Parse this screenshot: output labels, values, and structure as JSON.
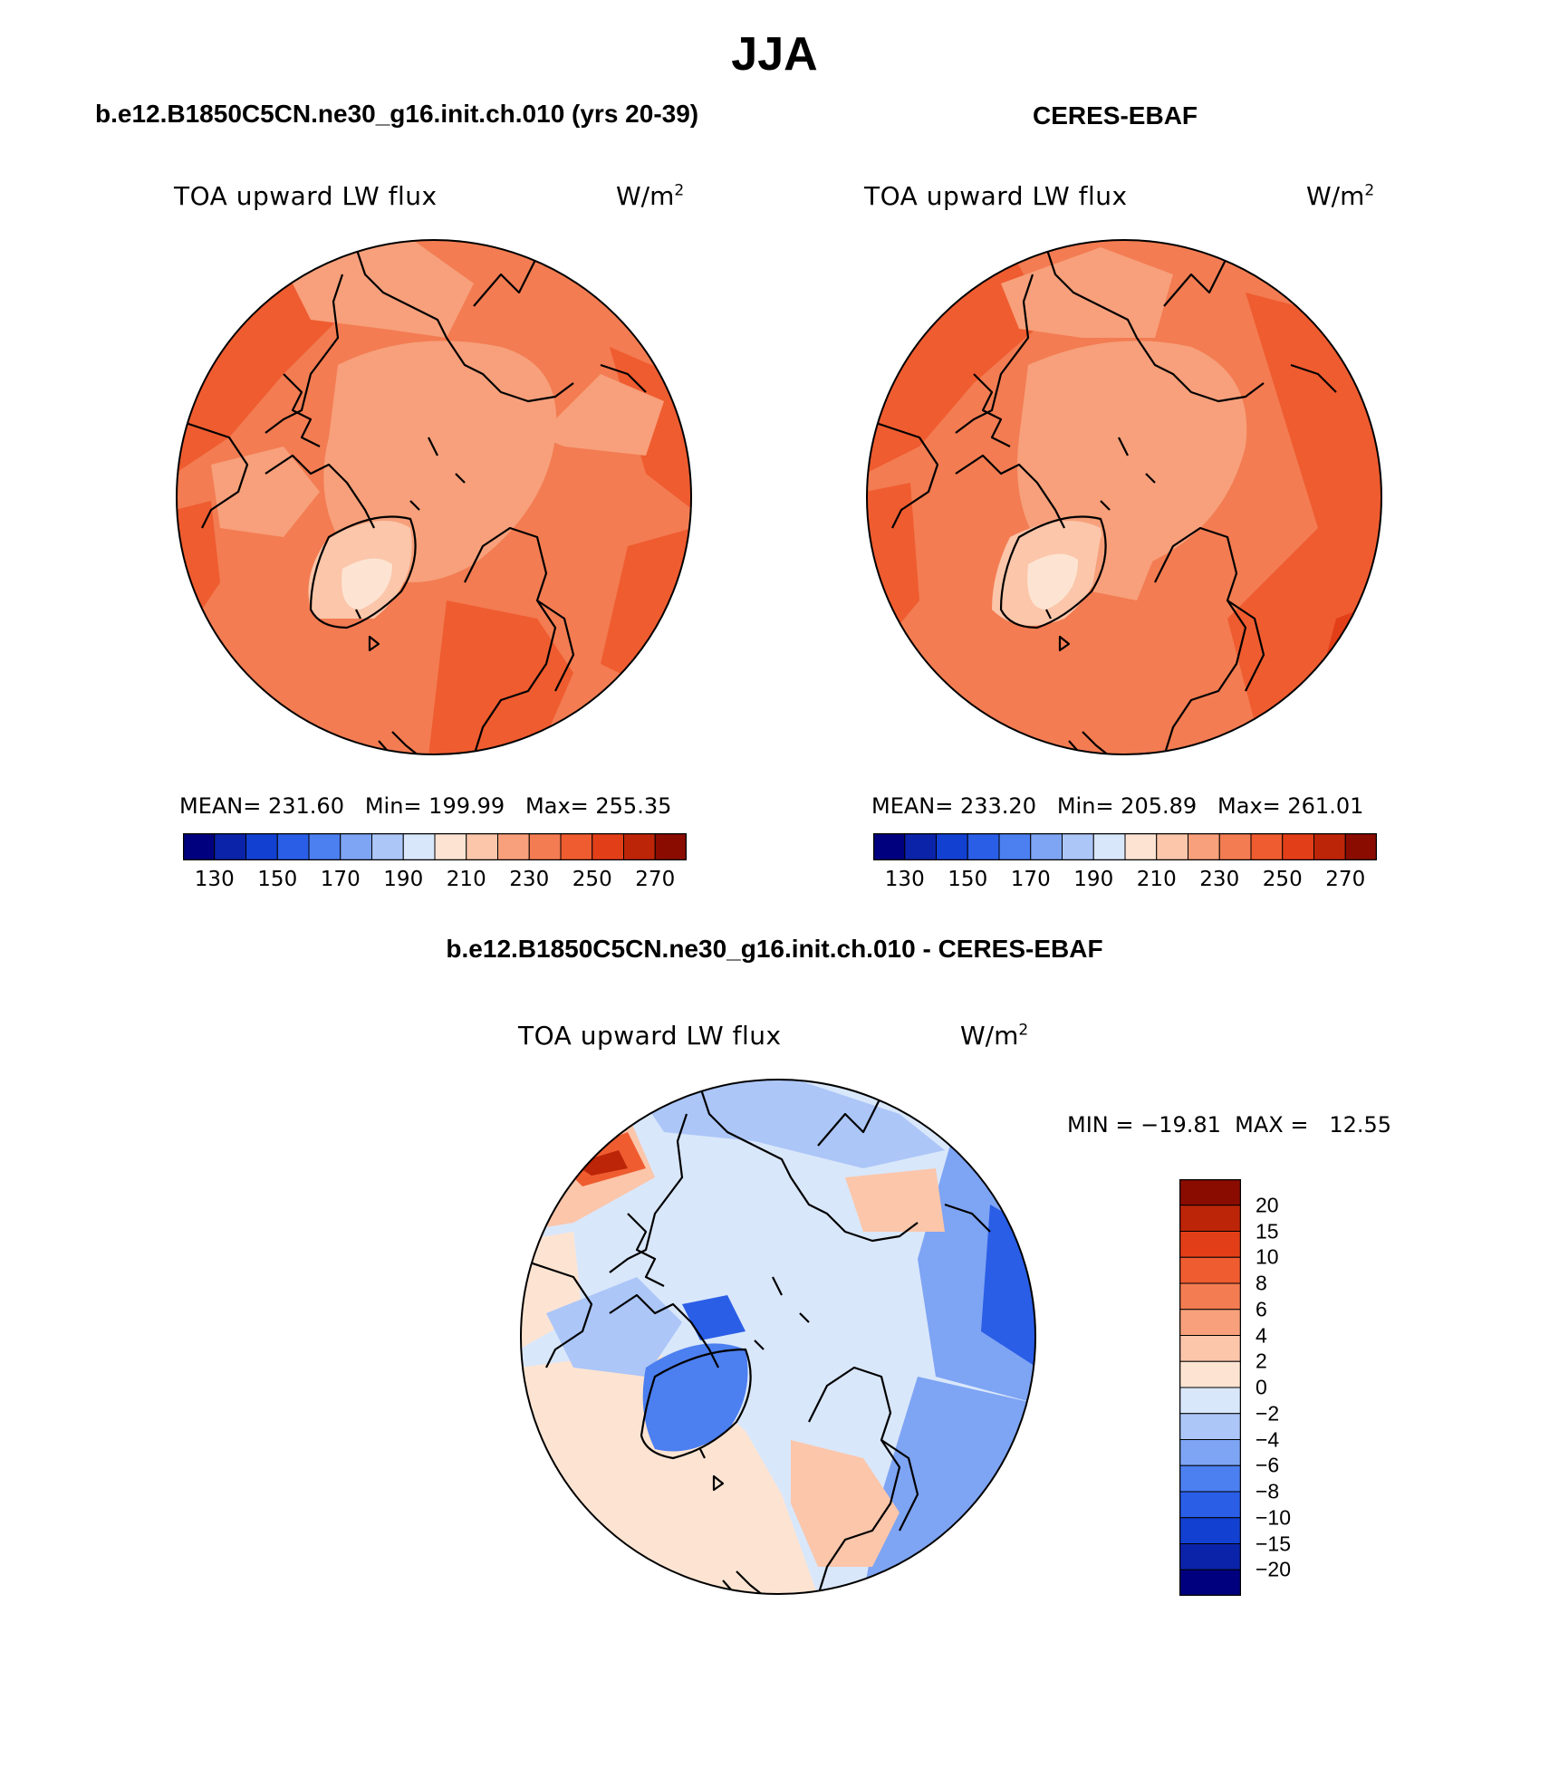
{
  "title": "JJA",
  "panels": {
    "model": {
      "header": "b.e12.B1850C5CN.ne30_g16.init.ch.010 (yrs 20-39)",
      "variable": "TOA upward LW flux",
      "units_base": "W/m",
      "units_exp": "2",
      "stats": "MEAN= 231.60   Min= 199.99   Max= 255.35"
    },
    "obs": {
      "header": "CERES-EBAF",
      "variable": "TOA upward LW flux",
      "units_base": "W/m",
      "units_exp": "2",
      "stats": "MEAN= 233.20   Min= 205.89   Max= 261.01"
    },
    "diff": {
      "header": "b.e12.B1850C5CN.ne30_g16.init.ch.010 - CERES-EBAF",
      "variable": "TOA upward LW flux",
      "units_base": "W/m",
      "units_exp": "2",
      "stats": "MIN = −19.81  MAX =   12.55"
    }
  },
  "colorbars": {
    "absolute": {
      "colors": [
        "#00007f",
        "#0a23a8",
        "#1240d0",
        "#2a5ee6",
        "#4c7ff0",
        "#7ea4f4",
        "#acc6f8",
        "#d9e7fb",
        "#fde4d2",
        "#fbc6aa",
        "#f7a07b",
        "#f37c52",
        "#ef5c30",
        "#e23f18",
        "#bd2508",
        "#8a0c00"
      ],
      "labels": [
        "130",
        "150",
        "170",
        "190",
        "210",
        "230",
        "250",
        "270"
      ]
    },
    "difference": {
      "colors": [
        "#00007f",
        "#0a23a8",
        "#1240d0",
        "#2a5ee6",
        "#4c7ff0",
        "#7ea4f4",
        "#acc6f8",
        "#d9e7fb",
        "#fde4d2",
        "#fbc6aa",
        "#f7a07b",
        "#f37c52",
        "#ef5c30",
        "#e23f18",
        "#bd2508",
        "#8a0c00"
      ],
      "labels": [
        "20",
        "15",
        "10",
        "8",
        "6",
        "4",
        "2",
        "0",
        "−2",
        "−4",
        "−6",
        "−8",
        "−10",
        "−15",
        "−20"
      ]
    }
  },
  "map_colors": {
    "model_base": "#f37c52",
    "obs_base": "#f37c52",
    "diff_base": "#d9e7fb",
    "coastline": "#000000"
  }
}
